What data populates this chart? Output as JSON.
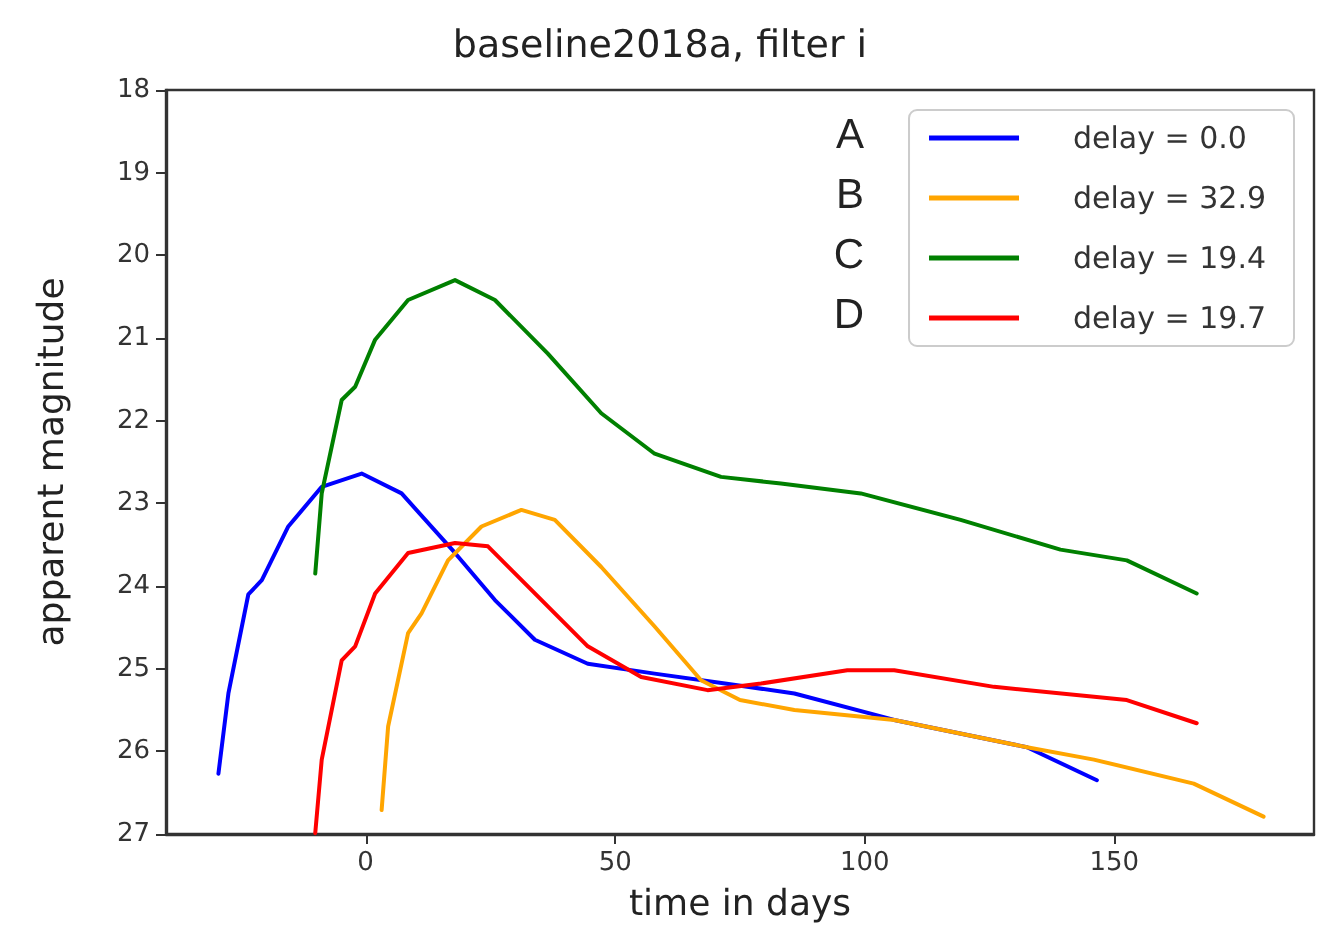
{
  "chart_data": {
    "type": "line",
    "title": "baseline2018a, filter i",
    "xlabel": "time in days",
    "ylabel": "apparent magnitude",
    "xlim": [
      -40,
      190
    ],
    "xticks": [
      0,
      50,
      100,
      150
    ],
    "ylim": [
      27,
      18
    ],
    "yticks": [
      18,
      19,
      20,
      21,
      22,
      23,
      24,
      25,
      26,
      27
    ],
    "grid": false,
    "legend": "top right",
    "line_style": "solid",
    "marker": "none",
    "annotations": [
      "A",
      "B",
      "C",
      "D"
    ],
    "series": [
      {
        "name": "delay = 0.0",
        "color": "#0000ff",
        "x": [
          -29.5,
          -27.5,
          -23.5,
          -20.8,
          -15.5,
          -8.8,
          -0.8,
          7.2,
          17.9,
          25.9,
          33.9,
          44.5,
          57.9,
          72,
          85.9,
          105.9,
          132.5,
          146.5
        ],
        "values": [
          26.27,
          25.3,
          24.1,
          23.93,
          23.28,
          22.8,
          22.64,
          22.88,
          23.6,
          24.17,
          24.65,
          24.94,
          25.06,
          25.18,
          25.3,
          25.62,
          25.95,
          26.35
        ]
      },
      {
        "name": "delay = 32.9",
        "color": "#ffa500",
        "x": [
          3.2,
          4.5,
          8.5,
          11.2,
          16.5,
          23.2,
          31.2,
          37.9,
          47.2,
          57.9,
          67.2,
          75,
          85.9,
          105.9,
          132.5,
          145.9,
          165.9,
          179.9
        ],
        "values": [
          26.71,
          25.7,
          24.57,
          24.33,
          23.69,
          23.28,
          23.08,
          23.2,
          23.77,
          24.49,
          25.14,
          25.38,
          25.5,
          25.62,
          25.95,
          26.1,
          26.39,
          26.79
        ]
      },
      {
        "name": "delay = 19.4",
        "color": "#008000",
        "x": [
          -10.1,
          -8.8,
          -4.8,
          -2.1,
          1.9,
          8.5,
          17.9,
          25.9,
          36.5,
          47.2,
          57.9,
          71.2,
          83.2,
          99.2,
          119.2,
          139.2,
          152.5,
          166.5
        ],
        "values": [
          23.85,
          22.88,
          21.75,
          21.59,
          21.02,
          20.54,
          20.3,
          20.54,
          21.19,
          21.91,
          22.4,
          22.68,
          22.76,
          22.88,
          23.2,
          23.56,
          23.69,
          24.09
        ]
      },
      {
        "name": "delay = 19.7",
        "color": "#ff0000",
        "x": [
          -10.1,
          -8.8,
          -4.8,
          -2.1,
          1.9,
          8.5,
          17.9,
          24.5,
          33.9,
          44.5,
          55.2,
          68.5,
          79.2,
          96.5,
          105.9,
          125.9,
          152.5,
          166.5
        ],
        "values": [
          26.99,
          26.1,
          24.9,
          24.73,
          24.09,
          23.6,
          23.48,
          23.52,
          24.09,
          24.73,
          25.1,
          25.26,
          25.18,
          25.02,
          25.02,
          25.22,
          25.38,
          25.66
        ]
      }
    ]
  }
}
